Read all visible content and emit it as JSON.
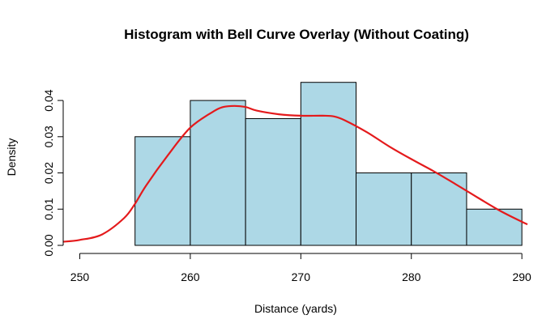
{
  "chart_data": {
    "type": "bar",
    "subtype": "histogram-with-density-curve",
    "title": "Histogram with Bell Curve Overlay (Without Coating)",
    "xlabel": "Distance (yards)",
    "ylabel": "Density",
    "xlim": [
      248.5,
      290.5
    ],
    "ylim": [
      0,
      0.0465
    ],
    "x_ticks": [
      250,
      260,
      270,
      280,
      290
    ],
    "y_ticks": [
      0.0,
      0.01,
      0.02,
      0.03,
      0.04
    ],
    "y_tick_labels": [
      "0.00",
      "0.01",
      "0.02",
      "0.03",
      "0.04"
    ],
    "bins": [
      {
        "from": 255,
        "to": 260,
        "density": 0.03
      },
      {
        "from": 260,
        "to": 265,
        "density": 0.04
      },
      {
        "from": 265,
        "to": 270,
        "density": 0.035
      },
      {
        "from": 270,
        "to": 275,
        "density": 0.045
      },
      {
        "from": 275,
        "to": 280,
        "density": 0.02
      },
      {
        "from": 280,
        "to": 285,
        "density": 0.02
      },
      {
        "from": 285,
        "to": 290,
        "density": 0.01
      }
    ],
    "curve": {
      "x": [
        248.5,
        250,
        252,
        254,
        255,
        256,
        258,
        260,
        262,
        263,
        264,
        265,
        266,
        268,
        270,
        272,
        273,
        274,
        276,
        278,
        280,
        282,
        284,
        286,
        288,
        290,
        290.5
      ],
      "y": [
        0.001,
        0.0015,
        0.003,
        0.0075,
        0.0115,
        0.0165,
        0.025,
        0.0325,
        0.0368,
        0.0382,
        0.0385,
        0.0382,
        0.0372,
        0.0362,
        0.0358,
        0.0358,
        0.0356,
        0.0345,
        0.0312,
        0.0273,
        0.0238,
        0.0205,
        0.0169,
        0.0132,
        0.0096,
        0.0065,
        0.0058
      ]
    },
    "grid": false,
    "colors": {
      "bar_fill": "#add8e6",
      "bar_stroke": "#000000",
      "curve": "#e41a1c"
    }
  }
}
